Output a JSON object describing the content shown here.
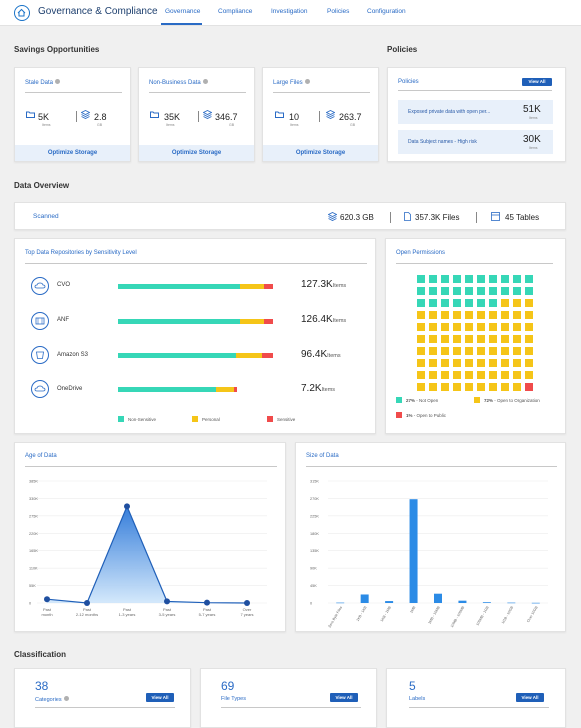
{
  "app": {
    "title": "Governance & Compliance",
    "tabs": [
      "Governance",
      "Compliance",
      "Investigation",
      "Policies",
      "Configuration"
    ]
  },
  "savings": {
    "heading": "Savings Opportunities",
    "cards": [
      {
        "title": "Stale Data",
        "items": "5K",
        "items_label": "Items",
        "size": "2.8",
        "size_label": "GB",
        "action": "Optimize Storage"
      },
      {
        "title": "Non-Business Data",
        "items": "35K",
        "items_label": "Items",
        "size": "346.7",
        "size_label": "GB",
        "action": "Optimize Storage"
      },
      {
        "title": "Large Files",
        "items": "10",
        "items_label": "Items",
        "size": "263.7",
        "size_label": "GB",
        "action": "Optimize Storage"
      }
    ]
  },
  "policies": {
    "heading": "Policies",
    "card_title": "Policies",
    "view_all": "View All",
    "rows": [
      {
        "label": "Exposed private data with open per...",
        "value": "51K",
        "unit": "Items"
      },
      {
        "label": "Data Subject names - High risk",
        "value": "30K",
        "unit": "Items"
      }
    ]
  },
  "overview": {
    "heading": "Data Overview",
    "scanned_label": "Scanned",
    "size": "620.3 GB",
    "files": "357.3K Files",
    "tables": "45 Tables"
  },
  "repos": {
    "title": "Top Data Repositories by Sensitivity Level",
    "items": [
      {
        "name": "CVO",
        "value": "127.3K",
        "unit": "Items",
        "non_sensitive": 0.79,
        "personal": 0.15,
        "sensitive": 0.06
      },
      {
        "name": "ANF",
        "value": "126.4K",
        "unit": "Items",
        "non_sensitive": 0.79,
        "personal": 0.15,
        "sensitive": 0.06
      },
      {
        "name": "Amazon S3",
        "value": "96.4K",
        "unit": "Items",
        "non_sensitive": 0.76,
        "personal": 0.17,
        "sensitive": 0.07
      },
      {
        "name": "OneDrive",
        "value": "7.2K",
        "unit": "Items",
        "non_sensitive": 0.63,
        "personal": 0.12,
        "sensitive": 0.02
      }
    ],
    "legend": [
      "Non-Sensitive",
      "Personal",
      "Sensitive"
    ],
    "colors": {
      "non_sensitive": "#36d7b7",
      "personal": "#f5c518",
      "sensitive": "#f04b4b"
    }
  },
  "permissions": {
    "title": "Open Permissions",
    "legend": [
      {
        "pct": "27%",
        "label": "- Not Open",
        "color": "#36d7b7"
      },
      {
        "pct": "72%",
        "label": "- Open to Organization",
        "color": "#f5c518"
      },
      {
        "pct": "1%",
        "label": "- Open to Public",
        "color": "#f04b4b"
      }
    ],
    "grid": {
      "teal": 27,
      "yellow": 72,
      "red": 1
    }
  },
  "age_chart": {
    "title": "Age of Data",
    "yticks": [
      "385K",
      "330K",
      "275K",
      "220K",
      "165K",
      "110K",
      "55K",
      "0"
    ],
    "categories": [
      "Past month",
      "Past 2-12 months",
      "Past 1-3 years",
      "Past 3-5 years",
      "Past 5-7 years",
      "Over 7 years"
    ]
  },
  "size_chart": {
    "title": "Size of Data",
    "yticks": [
      "315K",
      "270K",
      "225K",
      "180K",
      "135K",
      "90K",
      "45K",
      "0"
    ],
    "categories": [
      "Zero Byte Files",
      "1KB - 1KB",
      "1KB - 1MB",
      "1MB",
      "1MB - 10MB",
      "10MB - 100MB",
      "100MB - 1GB",
      "1GB - 10GB",
      "Over 10GB"
    ]
  },
  "chart_data": [
    {
      "type": "area",
      "title": "Age of Data",
      "categories": [
        "Past month",
        "Past 2-12 months",
        "Past 1-3 years",
        "Past 3-5 years",
        "Past 5-7 years",
        "Over 7 years"
      ],
      "values": [
        12000,
        0,
        305000,
        5000,
        1000,
        0
      ],
      "ylim": [
        0,
        385000
      ]
    },
    {
      "type": "bar",
      "title": "Size of Data",
      "categories": [
        "Zero Byte Files",
        "1KB - 1KB",
        "1KB - 1MB",
        "1MB",
        "1MB - 10MB",
        "10MB - 100MB",
        "100MB - 1GB",
        "1GB - 10GB",
        "Over 10GB"
      ],
      "values": [
        1000,
        22000,
        5000,
        268000,
        24000,
        6000,
        2000,
        1000,
        500
      ],
      "ylim": [
        0,
        315000
      ]
    }
  ],
  "classification": {
    "heading": "Classification",
    "cards": [
      {
        "value": "38",
        "label": "Categories",
        "action": "View All"
      },
      {
        "value": "69",
        "label": "File Types",
        "action": "View All"
      },
      {
        "value": "5",
        "label": "Labels",
        "action": "View All"
      }
    ]
  }
}
